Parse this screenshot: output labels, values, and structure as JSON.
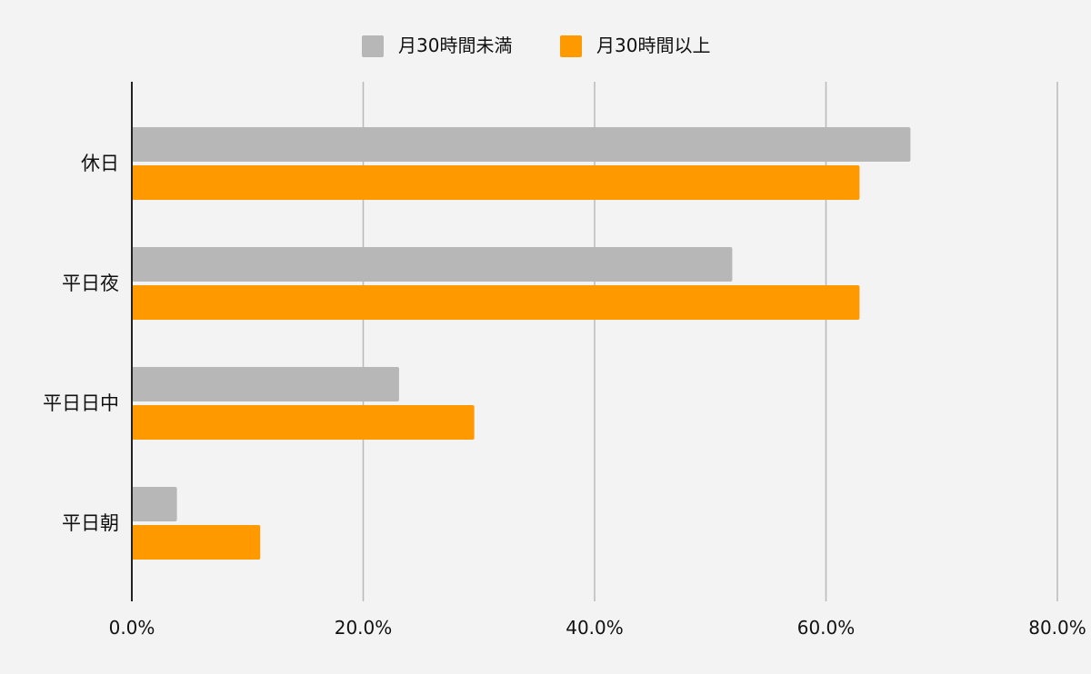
{
  "chart_data": {
    "type": "bar",
    "orientation": "horizontal",
    "categories": [
      "休日",
      "平日夜",
      "平日日中",
      "平日朝"
    ],
    "series": [
      {
        "name": "月30時間未満",
        "color": "#b7b7b7",
        "values": [
          67.3,
          51.9,
          23.1,
          3.9
        ]
      },
      {
        "name": "月30時間以上",
        "color": "#ff9900",
        "values": [
          62.9,
          62.9,
          29.6,
          11.1
        ]
      }
    ],
    "xlim": [
      0,
      80
    ],
    "xticks": [
      0,
      20,
      40,
      60,
      80
    ],
    "xtick_labels": [
      "0.0%",
      "20.0%",
      "40.0%",
      "60.0%",
      "80.0%"
    ],
    "grid": true,
    "legend_position": "top-center",
    "background": "#f3f3f3"
  }
}
